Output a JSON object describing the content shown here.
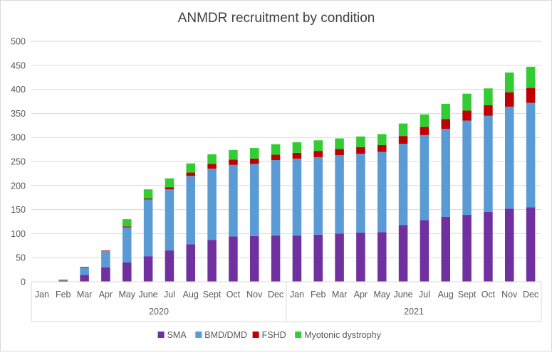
{
  "chart_data": {
    "type": "bar",
    "stacked": true,
    "title": "ANMDR recruitment by condition",
    "categories": [
      "Jan",
      "Feb",
      "Mar",
      "Apr",
      "May",
      "June",
      "Jul",
      "Aug",
      "Sept",
      "Oct",
      "Nov",
      "Dec",
      "Jan",
      "Feb",
      "Mar",
      "Apr",
      "May",
      "June",
      "Jul",
      "Aug",
      "Sept",
      "Oct",
      "Nov",
      "Dec"
    ],
    "groups": [
      {
        "label": "2020",
        "span": 12
      },
      {
        "label": "2021",
        "span": 12
      }
    ],
    "series": [
      {
        "name": "SMA",
        "color": "#7030A0",
        "values": [
          0,
          2,
          14,
          30,
          40,
          53,
          65,
          78,
          87,
          94,
          95,
          96,
          96,
          98,
          100,
          102,
          103,
          118,
          128,
          135,
          139,
          145,
          152,
          155
        ]
      },
      {
        "name": "BMD/DMD",
        "color": "#5B9BD5",
        "values": [
          0,
          1,
          16,
          34,
          73,
          118,
          127,
          142,
          148,
          149,
          150,
          157,
          160,
          161,
          163,
          164,
          167,
          169,
          177,
          183,
          196,
          200,
          212,
          217
        ]
      },
      {
        "name": "FSHD",
        "color": "#C00000",
        "values": [
          0,
          1,
          1,
          1,
          2,
          2,
          4,
          7,
          10,
          11,
          11,
          11,
          12,
          13,
          13,
          14,
          14,
          16,
          17,
          20,
          21,
          22,
          30,
          31
        ]
      },
      {
        "name": "Myotonic dystrophy",
        "color": "#33CC33",
        "values": [
          0,
          0,
          0,
          0,
          15,
          19,
          19,
          19,
          20,
          20,
          22,
          22,
          22,
          22,
          22,
          22,
          23,
          26,
          26,
          32,
          35,
          35,
          41,
          44
        ]
      }
    ],
    "ylim": [
      0,
      500
    ],
    "yticks": [
      0,
      50,
      100,
      150,
      200,
      250,
      300,
      350,
      400,
      450,
      500
    ],
    "grid": true,
    "legend": "bottom"
  }
}
